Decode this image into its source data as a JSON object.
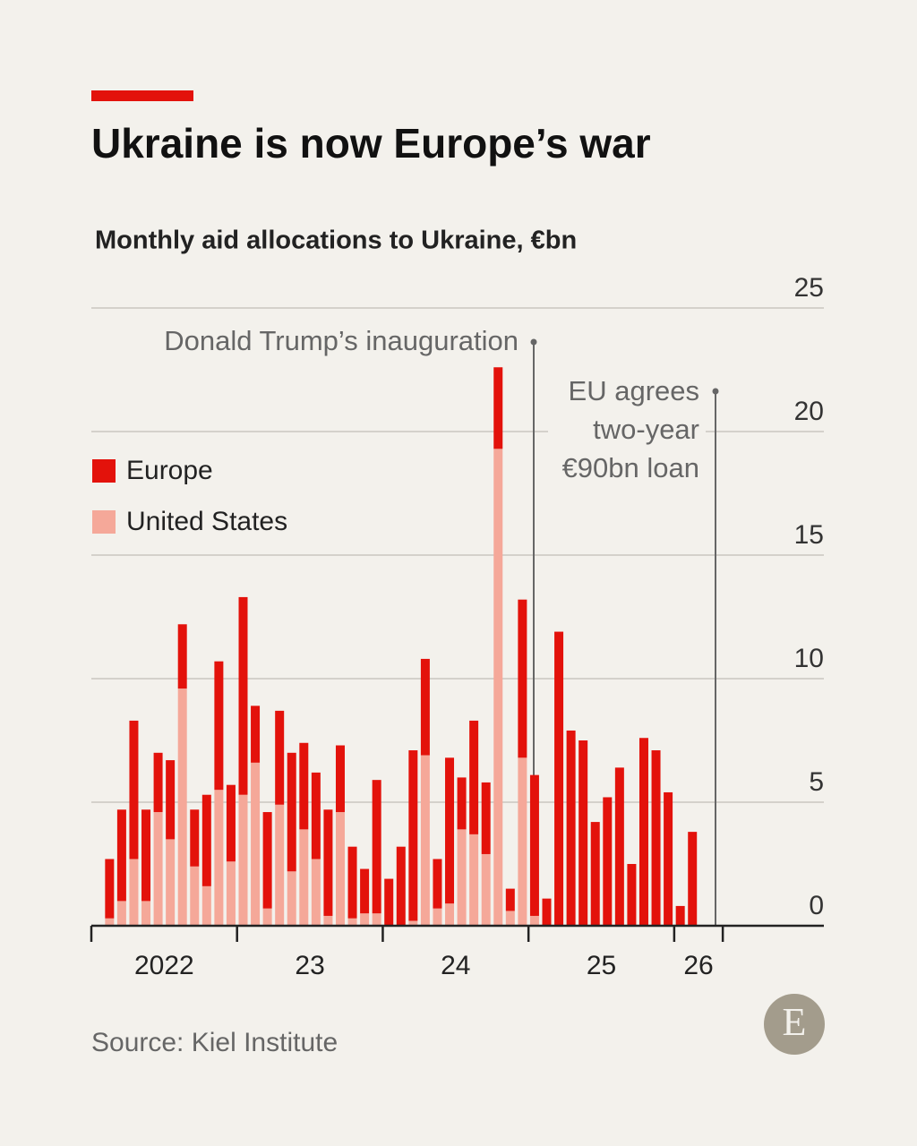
{
  "chart_data": {
    "type": "stacked_bar",
    "title": "Ukraine is now Europe’s war",
    "subtitle": "Monthly aid allocations to Ukraine, €bn",
    "categories": [
      null,
      null,
      null,
      null,
      null,
      null,
      null,
      null,
      null,
      null,
      null,
      null,
      null,
      null,
      null,
      null,
      null,
      null,
      null,
      null,
      null,
      null,
      null,
      null,
      null,
      null,
      null,
      null,
      null,
      null,
      null,
      null,
      null,
      null,
      null,
      null,
      null,
      null,
      null,
      null,
      null,
      null,
      null,
      null,
      null,
      null,
      null,
      null,
      null
    ],
    "x_labels": [
      "2022",
      "23",
      "24",
      "25",
      "26"
    ],
    "series": [
      {
        "name": "United States",
        "color": "#f5a899",
        "values": [
          0.3,
          1.0,
          2.7,
          1.0,
          4.6,
          3.5,
          9.6,
          2.4,
          1.6,
          5.5,
          2.6,
          5.3,
          6.6,
          0.7,
          4.9,
          2.2,
          3.9,
          2.7,
          0.4,
          4.6,
          0.3,
          0.5,
          0.5,
          0,
          0,
          0.2,
          6.9,
          0.7,
          0.9,
          3.9,
          3.7,
          2.9,
          19.3,
          0.6,
          6.8,
          0.4,
          0,
          0,
          0,
          0,
          0,
          0,
          0,
          0,
          0,
          0,
          0,
          0,
          0
        ]
      },
      {
        "name": "Europe",
        "color": "#e3120b",
        "values": [
          2.4,
          3.7,
          5.6,
          3.7,
          2.4,
          3.2,
          2.6,
          2.3,
          3.7,
          5.2,
          3.1,
          8.0,
          2.3,
          3.9,
          3.8,
          4.8,
          3.5,
          3.5,
          4.3,
          2.7,
          2.9,
          1.8,
          5.4,
          1.9,
          3.2,
          6.9,
          3.9,
          2.0,
          5.9,
          2.1,
          4.6,
          2.9,
          3.3,
          0.9,
          6.4,
          5.7,
          1.1,
          11.9,
          7.9,
          7.5,
          4.2,
          5.2,
          6.4,
          2.5,
          7.6,
          7.1,
          5.4,
          0.8,
          3.8
        ]
      }
    ],
    "ylim": [
      0,
      25
    ],
    "yticks": [
      0,
      5,
      10,
      15,
      20,
      25
    ],
    "grid": true,
    "annotations": [
      {
        "text": "Donald Trump’s inauguration"
      },
      {
        "lines": [
          "EU agrees",
          "two-year",
          "€90bn loan"
        ]
      }
    ],
    "source": "Source: Kiel Institute",
    "logo": "E"
  }
}
